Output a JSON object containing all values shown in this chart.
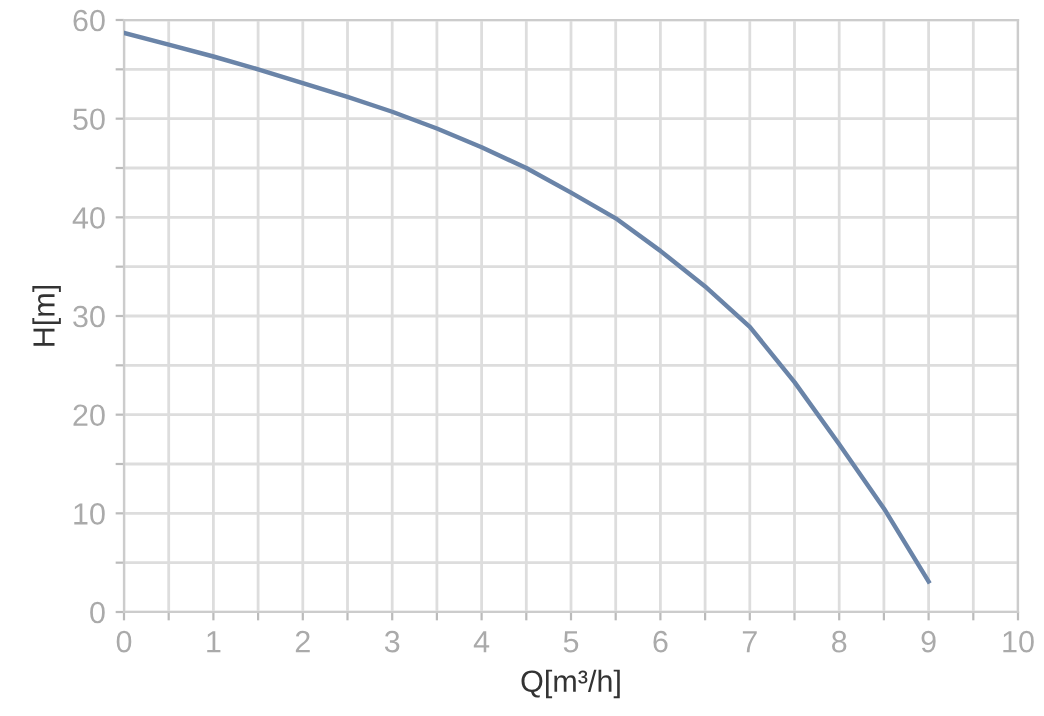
{
  "chart_data": {
    "type": "line",
    "xlabel": "Q[m³/h]",
    "ylabel": "H[m]",
    "x": [
      0,
      0.5,
      1,
      1.5,
      2,
      2.5,
      3,
      3.5,
      4,
      4.5,
      5,
      5.5,
      6,
      6.5,
      7,
      7.5,
      8,
      8.5,
      9
    ],
    "series": [
      {
        "color": "#6a84a8",
        "values": [
          58.7,
          57.5,
          56.3,
          55,
          53.6,
          52.2,
          50.7,
          49,
          47.1,
          45,
          42.5,
          39.9,
          36.6,
          33,
          28.9,
          23.3,
          17,
          10.5,
          3.1
        ]
      }
    ],
    "xlim": [
      0,
      10
    ],
    "ylim": [
      0,
      60
    ],
    "xticks": [
      0,
      {
        "value": 0.5,
        "label": null
      },
      1,
      {
        "value": 1.5,
        "label": null
      },
      2,
      {
        "value": 2.5,
        "label": null
      },
      3,
      {
        "value": 3.5,
        "label": null
      },
      4,
      {
        "value": 4.5,
        "label": null
      },
      5,
      {
        "value": 5.5,
        "label": null
      },
      6,
      {
        "value": 6.5,
        "label": null
      },
      7,
      {
        "value": 7.5,
        "label": null
      },
      8,
      {
        "value": 8.5,
        "label": null
      },
      9,
      {
        "value": 9.5,
        "label": null
      },
      10
    ],
    "yticks": [
      0,
      {
        "value": 5,
        "label": null
      },
      10,
      {
        "value": 15,
        "label": null
      },
      20,
      {
        "value": 25,
        "label": null
      },
      30,
      {
        "value": 35,
        "label": null
      },
      40,
      {
        "value": 45,
        "label": null
      },
      50,
      {
        "value": 55,
        "label": null
      },
      60
    ],
    "grid": true,
    "marker": "none",
    "line_style": "solid"
  }
}
